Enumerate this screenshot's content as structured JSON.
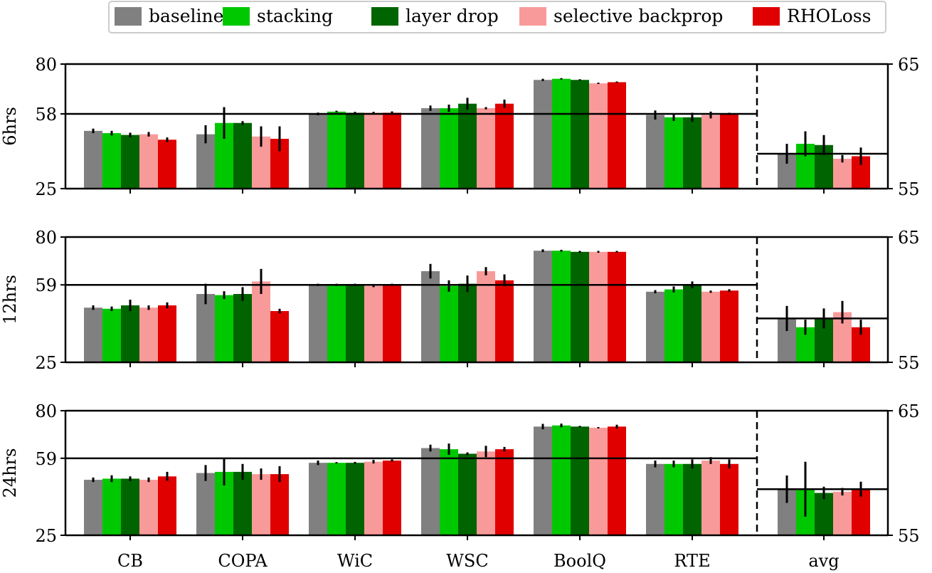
{
  "chart_data": {
    "type": "bar",
    "categories": [
      "CB",
      "COPA",
      "WiC",
      "WSC",
      "BoolQ",
      "RTE"
    ],
    "avg_category": "avg",
    "legend": {
      "placement": "top-center",
      "entries": [
        {
          "name": "baseline",
          "color": "#808080"
        },
        {
          "name": "stacking",
          "color": "#00c800"
        },
        {
          "name": "layer drop",
          "color": "#006400"
        },
        {
          "name": "selective backprop",
          "color": "#f99a9a"
        },
        {
          "name": "RHOLoss",
          "color": "#e00000"
        }
      ]
    },
    "panels": [
      {
        "row_label": "6hrs",
        "ylim": [
          25,
          80
        ],
        "yticks": [
          "25",
          "58",
          "80"
        ],
        "reference_line": 58,
        "values": [
          [
            50.5,
            49.5,
            48.7,
            49.0,
            46.6
          ],
          [
            49.0,
            54.0,
            54.0,
            48.0,
            47.0
          ],
          [
            58.0,
            59.0,
            58.5,
            58.5,
            58.5
          ],
          [
            60.5,
            60.5,
            62.5,
            60.5,
            62.5
          ],
          [
            73.0,
            73.5,
            73.0,
            71.5,
            72.0
          ],
          [
            57.5,
            56.5,
            56.5,
            57.5,
            58.0
          ]
        ],
        "errors": [
          [
            1.0,
            1.0,
            1.0,
            1.0,
            1.0
          ],
          [
            4.0,
            7.0,
            0.8,
            4.5,
            5.5
          ],
          [
            0.6,
            0.4,
            0.4,
            0.4,
            0.6
          ],
          [
            1.2,
            1.6,
            2.6,
            0.5,
            1.8
          ],
          [
            0.5,
            0.3,
            0.3,
            0.3,
            0.3
          ],
          [
            2.0,
            1.6,
            2.0,
            1.5,
            0.5
          ]
        ],
        "avg_ylim": [
          55,
          65
        ],
        "avg_yticks": [
          "55",
          "65"
        ],
        "avg_reference_line": 57.8,
        "avg_values": [
          57.8,
          58.6,
          58.5,
          57.4,
          57.6
        ],
        "avg_errors": [
          0.8,
          1.0,
          0.8,
          0.3,
          0.7
        ]
      },
      {
        "row_label": "12hrs",
        "ylim": [
          25,
          80
        ],
        "yticks": [
          "25",
          "59",
          "80"
        ],
        "reference_line": 59,
        "values": [
          [
            49.0,
            48.5,
            50.0,
            49.0,
            50.0
          ],
          [
            55.0,
            54.5,
            55.0,
            60.5,
            47.5
          ],
          [
            59.0,
            59.0,
            59.0,
            58.5,
            59.0
          ],
          [
            65.0,
            58.5,
            59.5,
            65.0,
            61.0
          ],
          [
            74.0,
            74.0,
            73.5,
            73.5,
            73.5
          ],
          [
            56.0,
            57.0,
            59.0,
            56.0,
            56.5
          ]
        ],
        "errors": [
          [
            1.0,
            1.0,
            2.5,
            1.0,
            1.3
          ],
          [
            4.5,
            1.7,
            3.0,
            5.5,
            1.0
          ],
          [
            0.5,
            0.5,
            0.5,
            0.5,
            0.5
          ],
          [
            3.2,
            2.5,
            3.6,
            1.8,
            2.6
          ],
          [
            0.6,
            0.4,
            0.4,
            0.4,
            0.4
          ],
          [
            0.7,
            1.3,
            1.5,
            0.5,
            0.6
          ]
        ],
        "avg_ylim": [
          55,
          65
        ],
        "avg_yticks": [
          "55",
          "65"
        ],
        "avg_reference_line": 58.5,
        "avg_values": [
          58.5,
          57.8,
          58.5,
          59.0,
          57.8
        ],
        "avg_errors": [
          1.0,
          0.6,
          0.8,
          0.9,
          0.6
        ]
      },
      {
        "row_label": "24hrs",
        "ylim": [
          25,
          80
        ],
        "yticks": [
          "25",
          "59",
          "80"
        ],
        "reference_line": 59,
        "values": [
          [
            49.5,
            50.0,
            50.0,
            49.5,
            51.0
          ],
          [
            52.5,
            53.0,
            53.0,
            52.0,
            52.0
          ],
          [
            57.0,
            57.0,
            57.0,
            57.5,
            58.0
          ],
          [
            63.5,
            63.0,
            61.0,
            62.0,
            63.0
          ],
          [
            73.0,
            73.5,
            73.0,
            72.5,
            73.0
          ],
          [
            56.5,
            56.5,
            56.5,
            58.0,
            56.5
          ]
        ],
        "errors": [
          [
            1.0,
            1.5,
            1.0,
            1.0,
            2.0
          ],
          [
            3.5,
            6.0,
            3.5,
            2.5,
            3.5
          ],
          [
            1.0,
            0.3,
            0.4,
            0.8,
            0.5
          ],
          [
            1.5,
            2.5,
            0.6,
            2.5,
            1.0
          ],
          [
            1.2,
            0.8,
            0.3,
            0.3,
            0.8
          ],
          [
            1.5,
            1.5,
            2.0,
            1.5,
            2.0
          ]
        ],
        "avg_ylim": [
          55,
          65
        ],
        "avg_yticks": [
          "55",
          "65"
        ],
        "avg_reference_line": 58.7,
        "avg_values": [
          58.7,
          58.7,
          58.4,
          58.5,
          58.7
        ],
        "avg_errors": [
          1.1,
          2.2,
          0.5,
          0.3,
          0.6
        ]
      }
    ]
  }
}
